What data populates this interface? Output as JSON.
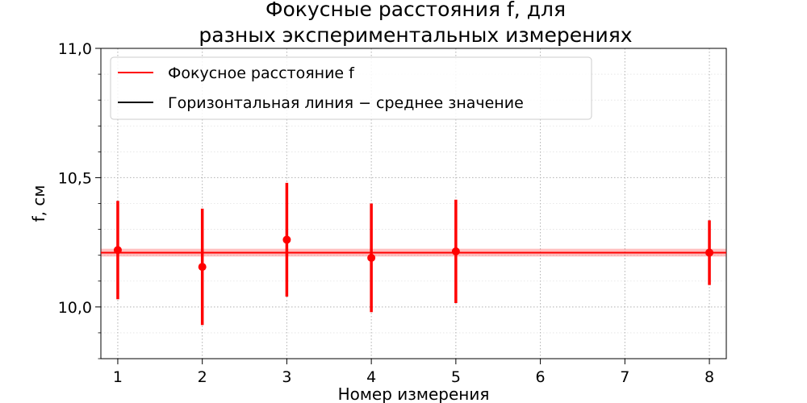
{
  "chart_data": {
    "type": "scatter",
    "title_lines": [
      "Фокусные расстояния f, для",
      "разных экспериментальных измерениях"
    ],
    "xlabel": "Номер измерения",
    "ylabel": "f, см",
    "xlim": [
      0.8,
      8.2
    ],
    "ylim": [
      9.8,
      11.0
    ],
    "x_ticks": [
      1,
      2,
      3,
      4,
      5,
      6,
      7,
      8
    ],
    "x_tick_labels": [
      "1",
      "2",
      "3",
      "4",
      "5",
      "6",
      "7",
      "8"
    ],
    "y_ticks": [
      10.0,
      10.5,
      11.0
    ],
    "y_tick_labels": [
      "10,0",
      "10,5",
      "11,0"
    ],
    "y_minor_step": 0.1,
    "grid": true,
    "legend_position": "top-left",
    "series": [
      {
        "name": "Фокусное расстояние f",
        "color": "#ff0000",
        "points": [
          {
            "x": 1,
            "y": 10.22,
            "err": 0.19
          },
          {
            "x": 2,
            "y": 10.155,
            "err": 0.225
          },
          {
            "x": 3,
            "y": 10.26,
            "err": 0.22
          },
          {
            "x": 4,
            "y": 10.19,
            "err": 0.21
          },
          {
            "x": 5,
            "y": 10.215,
            "err": 0.2
          },
          {
            "x": 8,
            "y": 10.21,
            "err": 0.125
          }
        ]
      }
    ],
    "mean_line": {
      "name": "Горизонтальная линия − среднее значение",
      "value": 10.21,
      "band": [
        10.195,
        10.225
      ],
      "color": "#000000",
      "drawn_color": "#ff0000"
    }
  }
}
